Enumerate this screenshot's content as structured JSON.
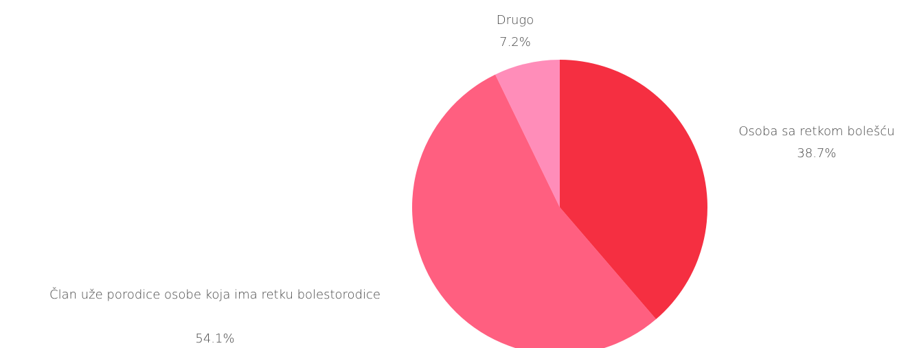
{
  "chart_data": {
    "type": "pie",
    "title": "",
    "slices": [
      {
        "label": "Osoba sa retkom bolešću",
        "percent_label": "38.7%",
        "value": 38.7,
        "color": "#f52f41"
      },
      {
        "label": "Član uže porodice osobe koja ima retku bolestorodice",
        "percent_label": "54.1%",
        "value": 54.1,
        "color": "#ff5f80"
      },
      {
        "label": "Drugo",
        "percent_label": "7.2%",
        "value": 7.2,
        "color": "#ff8db9"
      }
    ],
    "start": "12 o'clock",
    "direction": "clockwise",
    "legend": "none (labels beside slices)"
  }
}
